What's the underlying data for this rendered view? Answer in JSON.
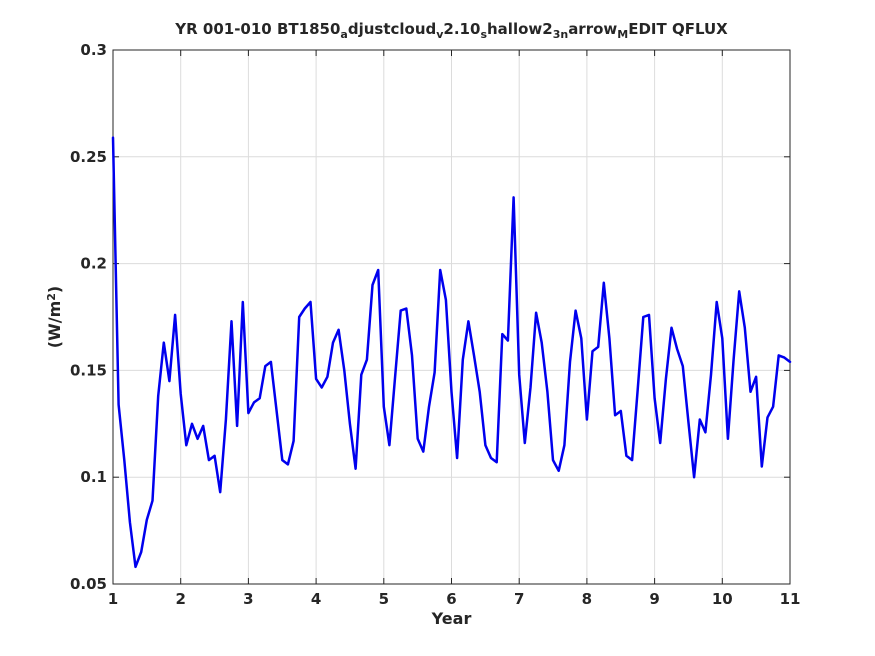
{
  "chart_data": {
    "type": "line",
    "title": {
      "parts": [
        {
          "text": "YR 001-010 BT1850",
          "shift": "none"
        },
        {
          "text": "a",
          "shift": "sub"
        },
        {
          "text": "djustcloud",
          "shift": "none"
        },
        {
          "text": "v",
          "shift": "sub"
        },
        {
          "text": "2.10",
          "shift": "none"
        },
        {
          "text": "s",
          "shift": "sub"
        },
        {
          "text": "hallow2",
          "shift": "none"
        },
        {
          "text": "3n",
          "shift": "sub"
        },
        {
          "text": "arrow",
          "shift": "none"
        },
        {
          "text": "M",
          "shift": "sub"
        },
        {
          "text": "EDIT QFLUX",
          "shift": "none"
        }
      ]
    },
    "xlabel": "Year",
    "ylabel": {
      "prefix": "(W/m",
      "sup": "2",
      "suffix": ")"
    },
    "xlim": [
      1,
      11
    ],
    "ylim": [
      0.05,
      0.3
    ],
    "xticks": [
      "1",
      "2",
      "3",
      "4",
      "5",
      "6",
      "7",
      "8",
      "9",
      "10",
      "11"
    ],
    "yticks": [
      "0.05",
      "0.1",
      "0.15",
      "0.2",
      "0.25",
      "0.3"
    ],
    "grid": true,
    "series": [
      {
        "color": "#0000ee",
        "x": [
          1.0,
          1.083,
          1.167,
          1.25,
          1.333,
          1.417,
          1.5,
          1.583,
          1.667,
          1.75,
          1.833,
          1.917,
          2.0,
          2.083,
          2.167,
          2.25,
          2.333,
          2.417,
          2.5,
          2.583,
          2.667,
          2.75,
          2.833,
          2.917,
          3.0,
          3.083,
          3.167,
          3.25,
          3.333,
          3.417,
          3.5,
          3.583,
          3.667,
          3.75,
          3.833,
          3.917,
          4.0,
          4.083,
          4.167,
          4.25,
          4.333,
          4.417,
          4.5,
          4.583,
          4.667,
          4.75,
          4.833,
          4.917,
          5.0,
          5.083,
          5.167,
          5.25,
          5.333,
          5.417,
          5.5,
          5.583,
          5.667,
          5.75,
          5.833,
          5.917,
          6.0,
          6.083,
          6.167,
          6.25,
          6.333,
          6.417,
          6.5,
          6.583,
          6.667,
          6.75,
          6.833,
          6.917,
          7.0,
          7.083,
          7.167,
          7.25,
          7.333,
          7.417,
          7.5,
          7.583,
          7.667,
          7.75,
          7.833,
          7.917,
          8.0,
          8.083,
          8.167,
          8.25,
          8.333,
          8.417,
          8.5,
          8.583,
          8.667,
          8.75,
          8.833,
          8.917,
          9.0,
          9.083,
          9.167,
          9.25,
          9.333,
          9.417,
          9.5,
          9.583,
          9.667,
          9.75,
          9.833,
          9.917,
          10.0,
          10.083,
          10.167,
          10.25,
          10.333,
          10.417,
          10.5,
          10.583,
          10.667,
          10.75,
          10.833,
          10.917,
          11.0
        ],
        "y": [
          0.259,
          0.134,
          0.108,
          0.079,
          0.058,
          0.065,
          0.08,
          0.089,
          0.138,
          0.163,
          0.145,
          0.176,
          0.139,
          0.115,
          0.125,
          0.118,
          0.124,
          0.108,
          0.11,
          0.093,
          0.127,
          0.173,
          0.124,
          0.182,
          0.13,
          0.135,
          0.137,
          0.152,
          0.154,
          0.131,
          0.108,
          0.106,
          0.117,
          0.175,
          0.179,
          0.182,
          0.146,
          0.142,
          0.147,
          0.163,
          0.169,
          0.15,
          0.125,
          0.104,
          0.148,
          0.155,
          0.19,
          0.197,
          0.133,
          0.115,
          0.147,
          0.178,
          0.179,
          0.157,
          0.118,
          0.112,
          0.133,
          0.149,
          0.197,
          0.183,
          0.14,
          0.109,
          0.155,
          0.173,
          0.157,
          0.14,
          0.115,
          0.109,
          0.107,
          0.167,
          0.164,
          0.231,
          0.148,
          0.116,
          0.142,
          0.177,
          0.163,
          0.14,
          0.108,
          0.103,
          0.115,
          0.154,
          0.178,
          0.165,
          0.127,
          0.159,
          0.161,
          0.191,
          0.165,
          0.129,
          0.131,
          0.11,
          0.108,
          0.141,
          0.175,
          0.176,
          0.137,
          0.116,
          0.146,
          0.17,
          0.16,
          0.152,
          0.126,
          0.1,
          0.127,
          0.121,
          0.148,
          0.182,
          0.165,
          0.118,
          0.155,
          0.187,
          0.17,
          0.14,
          0.147,
          0.105,
          0.128,
          0.133,
          0.157,
          0.156,
          0.154
        ]
      }
    ]
  }
}
